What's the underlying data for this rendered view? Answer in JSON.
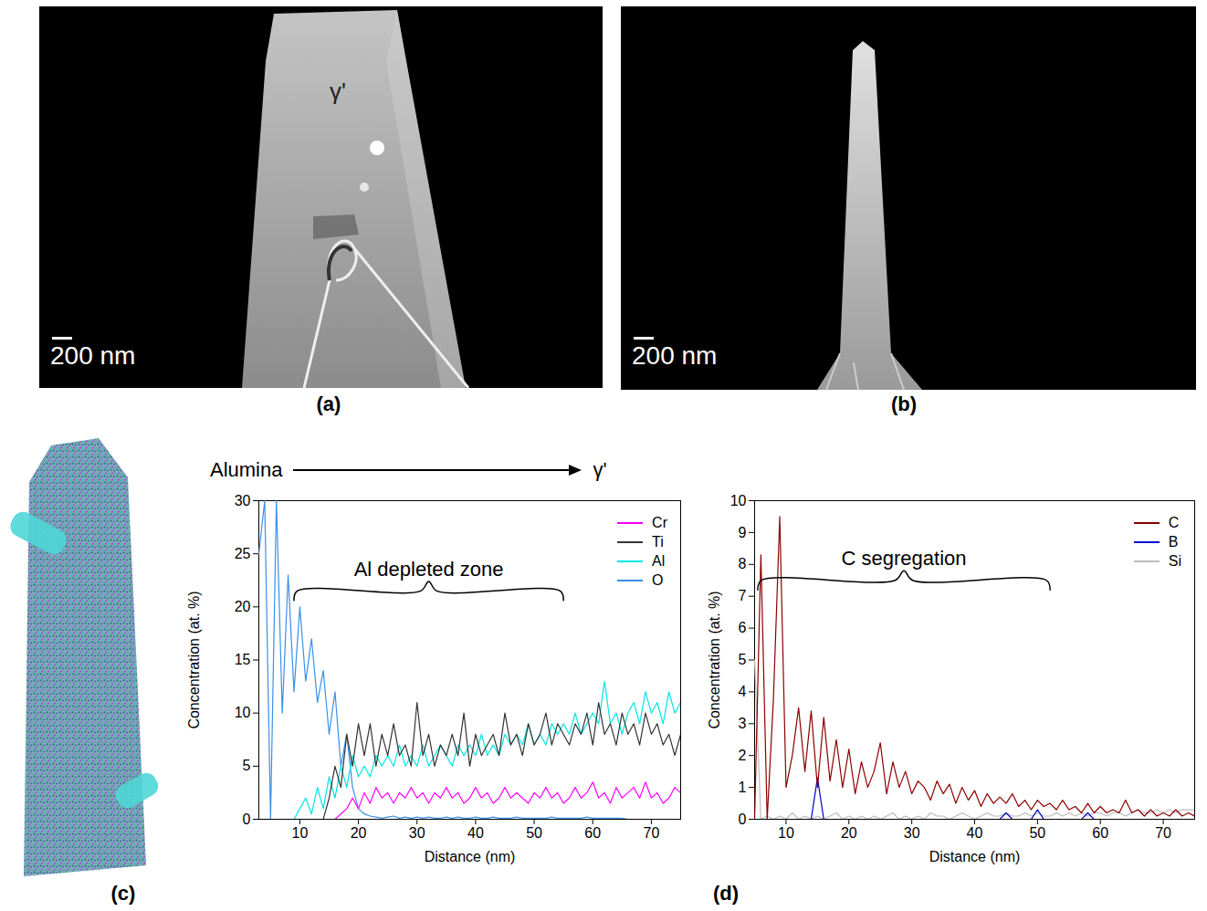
{
  "panels": {
    "a": {
      "label": "(a)",
      "annotation": "γ'",
      "scale_bar": "200 nm"
    },
    "b": {
      "label": "(b)",
      "scale_bar": "200 nm"
    },
    "c": {
      "label": "(c)"
    },
    "d": {
      "label": "(d)"
    }
  },
  "chart_data": [
    {
      "type": "line",
      "header": {
        "from": "Alumina",
        "to": "γ'"
      },
      "x_label": "Distance (nm)",
      "y_label": "Concentration (at. %)",
      "xlim": [
        3,
        75
      ],
      "xticks": [
        10,
        20,
        30,
        40,
        50,
        60,
        70
      ],
      "ylim": [
        0,
        30
      ],
      "yticks": [
        0,
        5,
        10,
        15,
        20,
        25,
        30
      ],
      "grid": false,
      "legend": "top-right",
      "annotations": [
        {
          "text": "Al depleted zone",
          "x": [
            9,
            55
          ],
          "y": 21.5
        }
      ],
      "x": [
        3,
        4,
        5,
        6,
        7,
        8,
        9,
        10,
        11,
        12,
        13,
        14,
        15,
        16,
        17,
        18,
        19,
        20,
        21,
        22,
        23,
        24,
        25,
        26,
        27,
        28,
        29,
        30,
        31,
        32,
        33,
        34,
        35,
        36,
        37,
        38,
        39,
        40,
        41,
        42,
        43,
        44,
        45,
        46,
        47,
        48,
        49,
        50,
        51,
        52,
        53,
        54,
        55,
        56,
        57,
        58,
        59,
        60,
        61,
        62,
        63,
        64,
        65,
        66,
        67,
        68,
        69,
        70,
        71,
        72,
        73,
        74,
        75
      ],
      "series": [
        {
          "name": "Cr",
          "color": "#ff00ff",
          "values": [
            0,
            0,
            0,
            0,
            0,
            0,
            0,
            0,
            0,
            0,
            0,
            0,
            0,
            0,
            0.5,
            1,
            2,
            1,
            2.5,
            1.5,
            3,
            2,
            2.5,
            1.5,
            2.5,
            2,
            3,
            2,
            2.5,
            1.5,
            2.5,
            2,
            3,
            2,
            2.5,
            1.5,
            2,
            3,
            2,
            2.5,
            1.5,
            2,
            3,
            2,
            2.5,
            2,
            1.5,
            2.5,
            2,
            3,
            2,
            2.5,
            1.5,
            2,
            3,
            2,
            2.5,
            3.5,
            2,
            2.5,
            1.5,
            3,
            2,
            2.5,
            3,
            2,
            3.5,
            2,
            2.5,
            1.5,
            2,
            3,
            2.5
          ]
        },
        {
          "name": "Ti",
          "color": "#333333",
          "values": [
            0,
            0,
            0,
            0,
            0,
            0,
            0,
            0,
            0,
            0,
            0,
            0,
            2,
            5,
            3,
            8,
            5,
            9,
            6,
            9,
            5,
            8,
            6,
            9,
            6,
            7,
            5,
            11,
            6,
            8,
            5,
            7,
            6,
            8,
            6,
            10,
            5,
            8,
            6,
            7,
            8,
            6,
            10,
            7,
            8,
            6,
            9,
            7,
            8,
            10,
            7,
            9,
            8,
            7,
            9,
            8,
            10,
            7,
            11,
            8,
            9,
            7,
            10,
            8,
            9,
            7,
            10,
            8,
            9,
            7,
            8,
            6,
            8
          ]
        },
        {
          "name": "Al",
          "color": "#00e5e5",
          "values": [
            0,
            0,
            0,
            0,
            0,
            0,
            0,
            1,
            2,
            0.5,
            3,
            1,
            4,
            2,
            5,
            3,
            6,
            4,
            5,
            4,
            6,
            5,
            6,
            5,
            7,
            5,
            6,
            5,
            7,
            5,
            6,
            7,
            6,
            5,
            7,
            6,
            7,
            6,
            8,
            6,
            7,
            6,
            8,
            7,
            8,
            7,
            9,
            7,
            8,
            7,
            9,
            8,
            9,
            8,
            10,
            8,
            9,
            10,
            9,
            13,
            9,
            10,
            8,
            10,
            11,
            9,
            12,
            10,
            11,
            9,
            12,
            10,
            11
          ]
        },
        {
          "name": "O",
          "color": "#3a8fe8",
          "values": [
            25,
            30,
            0,
            30,
            10,
            23,
            12,
            20,
            13,
            17,
            11,
            14,
            8,
            12,
            5,
            8,
            3,
            1,
            0.5,
            0.3,
            0.2,
            0.1,
            0.2,
            0.3,
            0.1,
            0.2,
            0.1,
            0.2,
            0.1,
            0.2,
            0.1,
            0.1,
            0.2,
            0.1,
            0.2,
            0.1,
            0.1,
            0.2,
            0.1,
            0.1,
            0.2,
            0.1,
            0.1,
            0.1,
            0.2,
            0.1,
            0.1,
            0.1,
            0.1,
            0.1,
            0.2,
            0.1,
            0.1,
            0.1,
            0.1,
            0.1,
            0.2,
            0.1,
            0.1,
            0.1,
            0.1,
            0.1,
            0.1,
            0,
            0,
            0,
            0,
            0,
            0,
            0,
            0,
            0,
            0
          ]
        }
      ]
    },
    {
      "type": "line",
      "x_label": "Distance (nm)",
      "y_label": "Concentration (at. %)",
      "xlim": [
        5,
        75
      ],
      "xticks": [
        10,
        20,
        30,
        40,
        50,
        60,
        70
      ],
      "ylim": [
        0,
        10
      ],
      "yticks": [
        0,
        1,
        2,
        3,
        4,
        5,
        6,
        7,
        8,
        9,
        10
      ],
      "grid": false,
      "legend": "top-right",
      "annotations": [
        {
          "text": "C segregation",
          "x": [
            5.5,
            52
          ],
          "y": 7.5
        }
      ],
      "x": [
        5,
        6,
        7,
        8,
        9,
        10,
        11,
        12,
        13,
        14,
        15,
        16,
        17,
        18,
        19,
        20,
        21,
        22,
        23,
        24,
        25,
        26,
        27,
        28,
        29,
        30,
        31,
        32,
        33,
        34,
        35,
        36,
        37,
        38,
        39,
        40,
        41,
        42,
        43,
        44,
        45,
        46,
        47,
        48,
        49,
        50,
        51,
        52,
        53,
        54,
        55,
        56,
        57,
        58,
        59,
        60,
        61,
        62,
        63,
        64,
        65,
        66,
        67,
        68,
        69,
        70,
        71,
        72,
        73,
        74,
        75
      ],
      "series": [
        {
          "name": "C",
          "color": "#8b0000",
          "values": [
            0,
            8.3,
            0,
            3.8,
            9.5,
            1,
            2,
            3.5,
            1.5,
            3.4,
            1,
            3.2,
            1.2,
            2.5,
            1,
            2.2,
            0.8,
            1.8,
            1,
            1.5,
            2.4,
            0.8,
            1.8,
            1,
            1.5,
            0.8,
            1.2,
            1,
            0.6,
            1.2,
            0.8,
            1.1,
            0.5,
            1,
            0.6,
            0.9,
            0.4,
            0.8,
            0.5,
            0.7,
            0.5,
            0.8,
            0.4,
            0.6,
            0.3,
            0.6,
            0.4,
            0.5,
            0.3,
            0.6,
            0.3,
            0.4,
            0.2,
            0.5,
            0.2,
            0.4,
            0.2,
            0.3,
            0.2,
            0.6,
            0.2,
            0.3,
            0.1,
            0.3,
            0.1,
            0.2,
            0.1,
            0.3,
            0.1,
            0.2,
            0.1
          ]
        },
        {
          "name": "B",
          "color": "#0000cc",
          "values": [
            0,
            0,
            0,
            0,
            0,
            0,
            0,
            0,
            0,
            0,
            1.3,
            0,
            0,
            0,
            0,
            0,
            0,
            0,
            0,
            0,
            0,
            0,
            0,
            0,
            0,
            0,
            0,
            0,
            0,
            0,
            0,
            0,
            0,
            0,
            0,
            0,
            0,
            0,
            0,
            0,
            0.2,
            0,
            0,
            0,
            0,
            0.3,
            0,
            0,
            0,
            0,
            0,
            0,
            0,
            0.2,
            0,
            0,
            0,
            0,
            0,
            0,
            0,
            0,
            0,
            0,
            0,
            0,
            0,
            0,
            0,
            0,
            0
          ]
        },
        {
          "name": "Si",
          "color": "#bbbbbb",
          "values": [
            5,
            0,
            0.1,
            0,
            0.1,
            0,
            0.2,
            0,
            0.1,
            0,
            0.1,
            0,
            0.1,
            0.2,
            0,
            0.1,
            0,
            0.1,
            0,
            0.1,
            0,
            0.1,
            0.2,
            0,
            0.1,
            0,
            0.1,
            0,
            0.2,
            0.1,
            0.1,
            0,
            0.1,
            0.2,
            0.1,
            0,
            0.1,
            0.2,
            0.1,
            0.1,
            0.2,
            0.1,
            0.1,
            0.2,
            0.1,
            0.2,
            0.1,
            0.1,
            0.2,
            0.1,
            0.2,
            0.1,
            0.2,
            0.1,
            0.2,
            0.2,
            0.1,
            0.2,
            0.2,
            0.1,
            0.2,
            0.3,
            0.2,
            0.2,
            0.3,
            0.2,
            0.3,
            0.2,
            0.3,
            0.3,
            0.3
          ]
        }
      ]
    }
  ]
}
